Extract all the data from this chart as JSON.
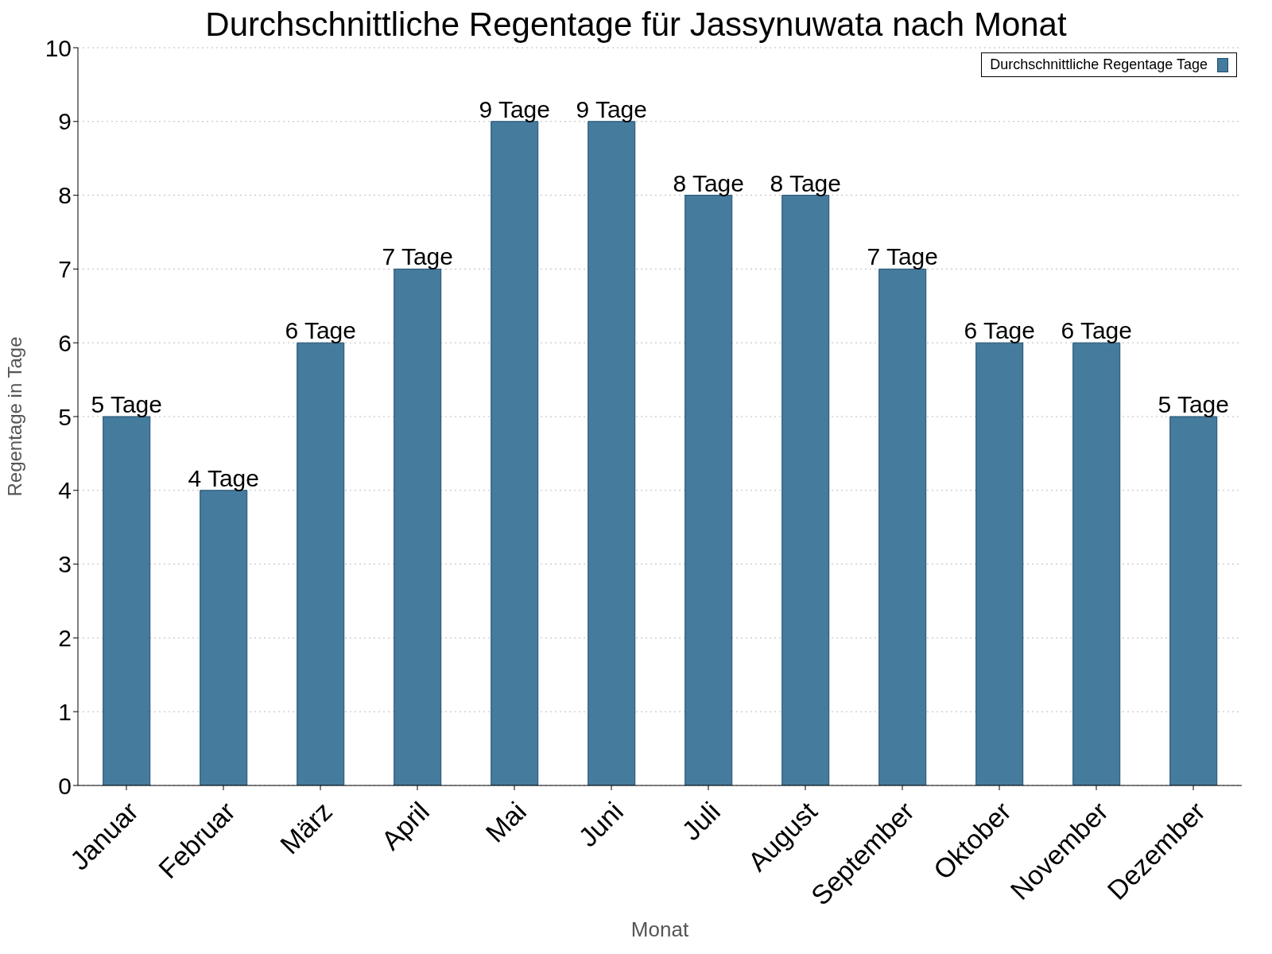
{
  "chart_data": {
    "type": "bar",
    "title": "Durchschnittliche Regentage für Jassynuwata nach Monat",
    "xlabel": "Monat",
    "ylabel": "Regentage in Tage",
    "categories": [
      "Januar",
      "Februar",
      "März",
      "April",
      "Mai",
      "Juni",
      "Juli",
      "August",
      "September",
      "Oktober",
      "November",
      "Dezember"
    ],
    "series": [
      {
        "name": "Durchschnittliche Regentage Tage",
        "color": "#457b9d",
        "values": [
          5,
          4,
          6,
          7,
          9,
          9,
          8,
          8,
          7,
          6,
          6,
          5
        ],
        "value_labels": [
          "5 Tage",
          "4 Tage",
          "6 Tage",
          "7 Tage",
          "9 Tage",
          "9 Tage",
          "8 Tage",
          "8 Tage",
          "7 Tage",
          "6 Tage",
          "6 Tage",
          "5 Tage"
        ]
      }
    ],
    "ylim": [
      0,
      10
    ],
    "yticks": [
      0,
      1,
      2,
      3,
      4,
      5,
      6,
      7,
      8,
      9,
      10
    ],
    "grid": "y",
    "legend": "top right"
  }
}
